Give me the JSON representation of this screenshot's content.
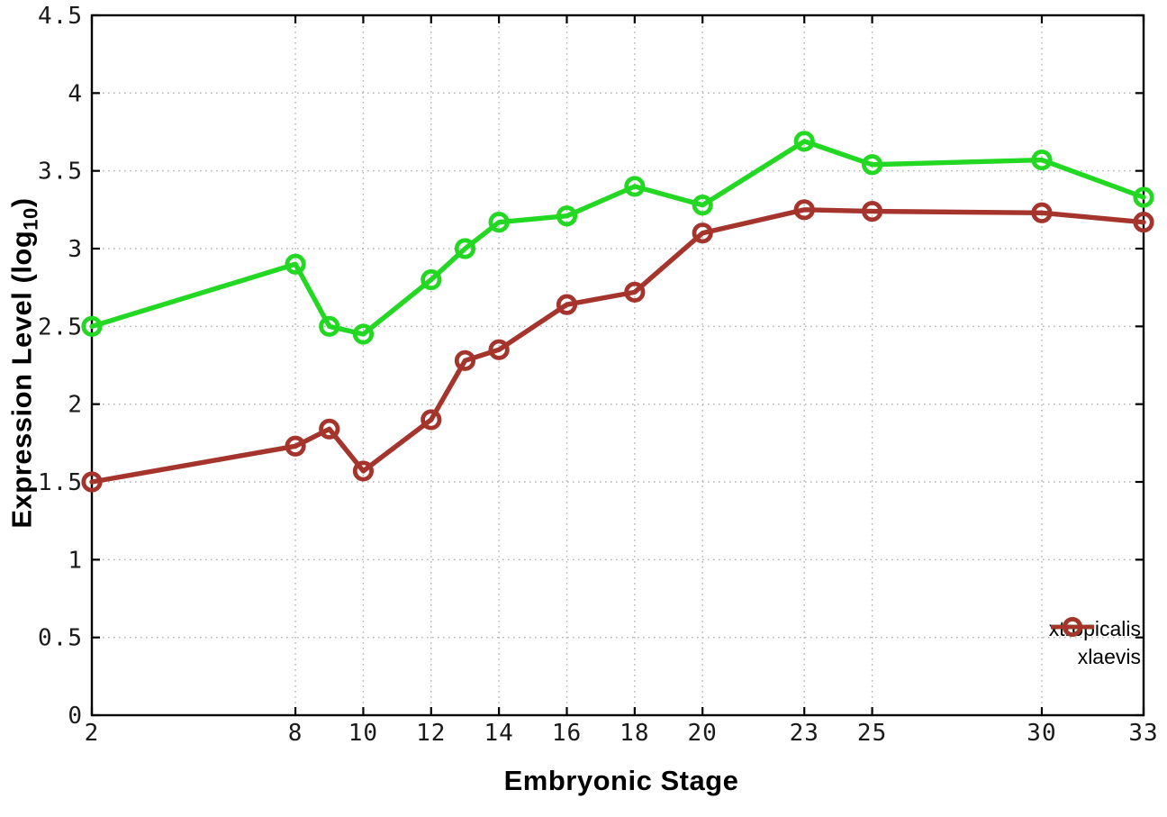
{
  "chart_data": {
    "type": "line",
    "title": "",
    "xlabel": "Embryonic Stage",
    "ylabel": "Expression Level (log10)",
    "ylabel_parts": {
      "prefix": "Expression Level (log",
      "subscript": "10",
      "suffix": ")"
    },
    "x": [
      2,
      8,
      9,
      10,
      12,
      13,
      14,
      16,
      18,
      20,
      23,
      25,
      30,
      33
    ],
    "xticks": [
      2,
      8,
      10,
      12,
      14,
      16,
      18,
      20,
      23,
      25,
      30,
      33
    ],
    "yticks": [
      0,
      0.5,
      1,
      1.5,
      2,
      2.5,
      3,
      3.5,
      4,
      4.5
    ],
    "xlim": [
      2,
      33
    ],
    "ylim": [
      0,
      4.5
    ],
    "grid": true,
    "grid_style": "dotted",
    "legend_position": "inside-bottom-right",
    "series": [
      {
        "name": "xtropicalis",
        "color": "#22d822",
        "marker": "open-circle",
        "values": [
          2.5,
          2.9,
          2.5,
          2.45,
          2.8,
          3.0,
          3.17,
          3.21,
          3.4,
          3.28,
          3.69,
          3.54,
          3.57,
          3.33
        ]
      },
      {
        "name": "xlaevis",
        "color": "#a5342c",
        "marker": "open-circle",
        "values": [
          1.5,
          1.73,
          1.84,
          1.57,
          1.9,
          2.28,
          2.35,
          2.64,
          2.72,
          3.1,
          3.25,
          3.24,
          3.23,
          3.17
        ]
      }
    ],
    "colors": {
      "axis": "#000000",
      "grid": "#b3b3b3",
      "tick_label": "#1a1a1a",
      "background": "#ffffff"
    }
  }
}
